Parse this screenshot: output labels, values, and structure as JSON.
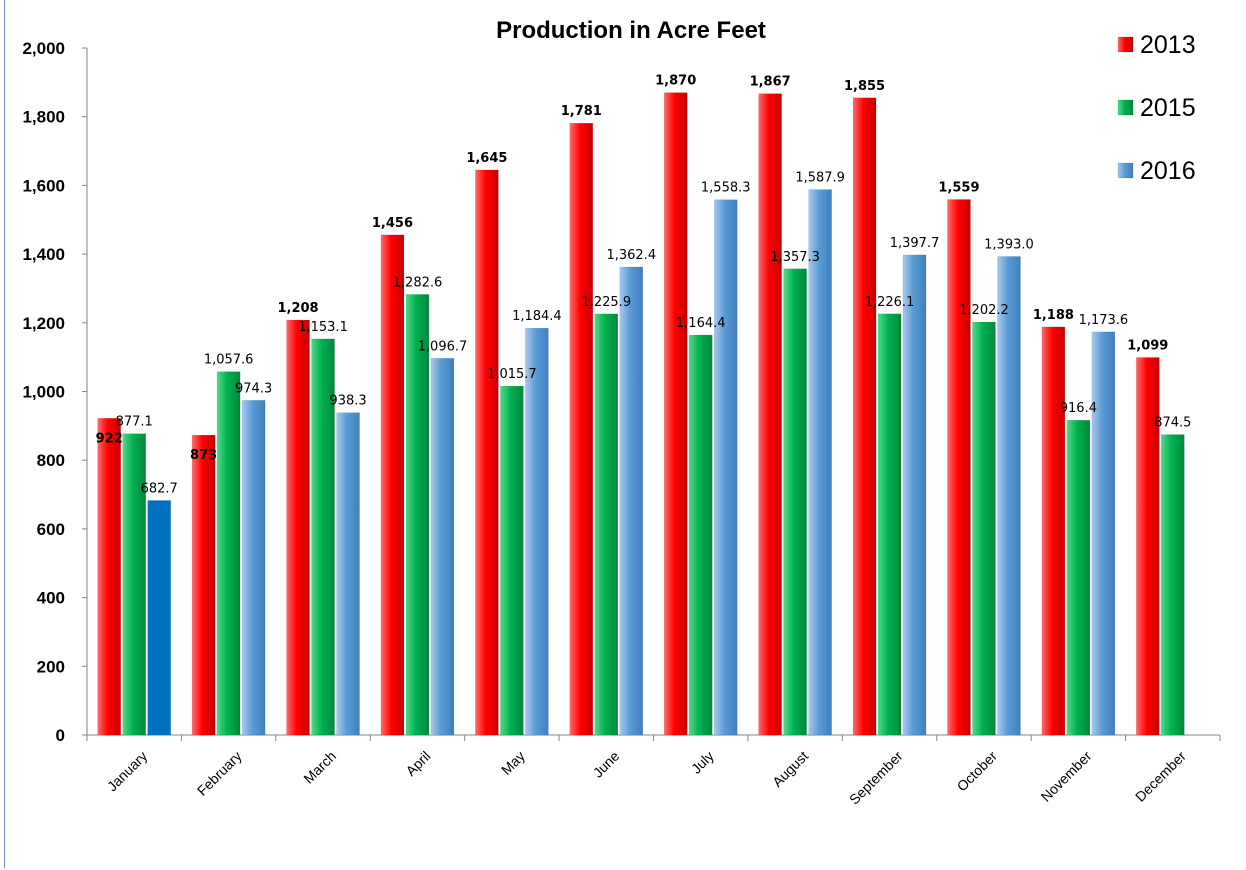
{
  "chart_data": {
    "type": "bar",
    "title": "Production in Acre Feet",
    "xlabel": "",
    "ylabel": "",
    "ylim": [
      0,
      2000
    ],
    "yticks": [
      0,
      200,
      400,
      600,
      800,
      1000,
      1200,
      1400,
      1600,
      1800,
      2000
    ],
    "ytick_labels": [
      "0",
      "200",
      "400",
      "600",
      "800",
      "1,000",
      "1,200",
      "1,400",
      "1,600",
      "1,800",
      "2,000"
    ],
    "grid": false,
    "legend_position": "top-right",
    "categories": [
      "January",
      "February",
      "March",
      "April",
      "May",
      "June",
      "July",
      "August",
      "September",
      "October",
      "November",
      "December"
    ],
    "series": [
      {
        "name": "2013",
        "color": "#ff0000",
        "label_bold": true,
        "values": [
          922,
          873,
          1208,
          1456,
          1645,
          1781,
          1870,
          1867,
          1855,
          1559,
          1188,
          1099
        ],
        "labels": [
          "922",
          "873",
          "1,208",
          "1,456",
          "1,645",
          "1,781",
          "1,870",
          "1,867",
          "1,855",
          "1,559",
          "1,188",
          "1,099"
        ]
      },
      {
        "name": "2015",
        "color": "#00b050",
        "label_bold": false,
        "values": [
          877.1,
          1057.6,
          1153.1,
          1282.6,
          1015.7,
          1225.9,
          1164.4,
          1357.3,
          1226.1,
          1202.2,
          916.4,
          874.5
        ],
        "labels": [
          "877.1",
          "1,057.6",
          "1,153.1",
          "1,282.6",
          "1,015.7",
          "1,225.9",
          "1,164.4",
          "1,357.3",
          "1,226.1",
          "1,202.2",
          "916.4",
          "874.5"
        ]
      },
      {
        "name": "2016",
        "color": "#5b9bd5",
        "label_bold": false,
        "values": [
          682.7,
          974.3,
          938.3,
          1096.7,
          1184.4,
          1362.4,
          1558.3,
          1587.9,
          1397.7,
          1393.0,
          1173.6,
          null
        ],
        "labels": [
          "682.7",
          "974.3",
          "938.3",
          "1,096.7",
          "1,184.4",
          "1,362.4",
          "1,558.3",
          "1,587.9",
          "1,397.7",
          "1,393.0",
          "1,173.6",
          ""
        ]
      }
    ]
  }
}
